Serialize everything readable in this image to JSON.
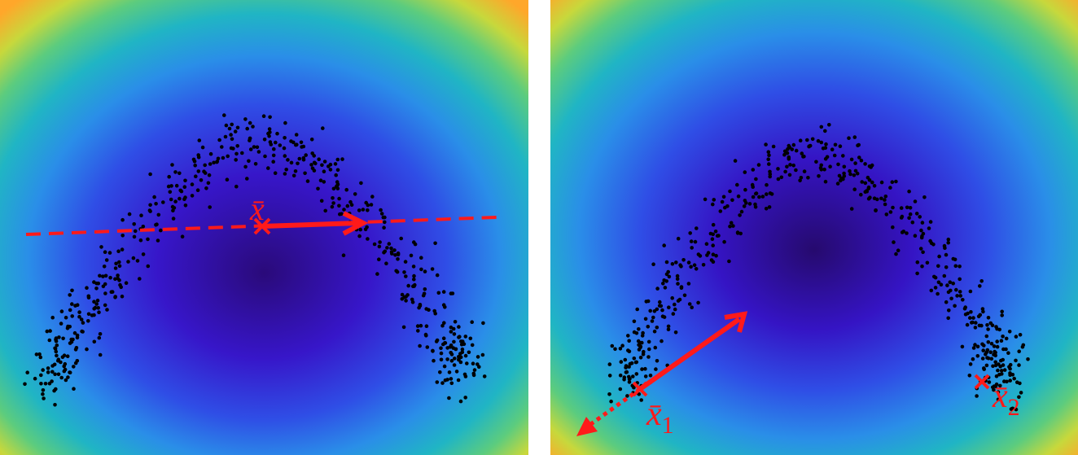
{
  "panels": [
    {
      "id": "left",
      "mean_label": "x̄",
      "annotations": [
        "dashed-red-line",
        "red-arrow-right",
        "mean-marker"
      ]
    },
    {
      "id": "right",
      "mean_labels": [
        "x̄",
        "x̄"
      ],
      "subscripts": [
        "1",
        "2"
      ],
      "annotations": [
        "red-double-arrow",
        "dotted-extension-arrow",
        "mean-marker-1",
        "mean-marker-2"
      ]
    }
  ],
  "colors": {
    "background_gradient": [
      "#2b0a8a",
      "#3a1fd8",
      "#2e6af0",
      "#22b6c9",
      "#53d18a",
      "#c8dc3a",
      "#ffb82a",
      "#ff9a1e"
    ],
    "points": "#000000",
    "annotation": "#ff1a1a"
  }
}
